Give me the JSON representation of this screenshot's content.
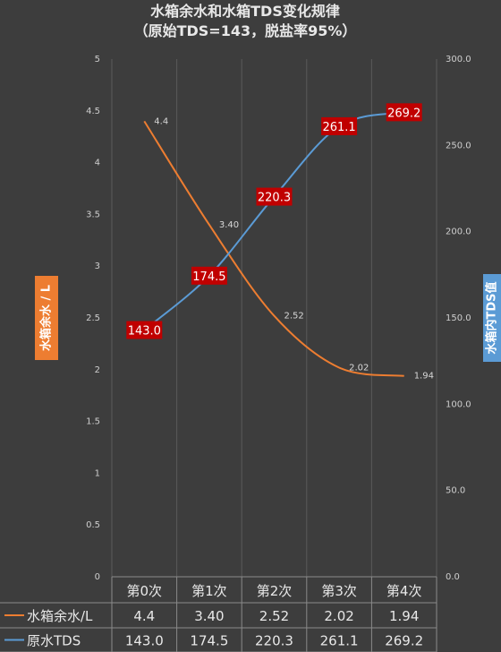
{
  "chart_data": {
    "type": "line",
    "title": "水箱余水和水箱TDS变化规律",
    "subtitle": "（原始TDS=143，脱盐率95%）",
    "categories": [
      "第0次",
      "第1次",
      "第2次",
      "第3次",
      "第4次"
    ],
    "series": [
      {
        "name": "水箱余水/L",
        "axis": "left",
        "color": "#ed7d31",
        "values": [
          4.4,
          3.4,
          2.52,
          2.02,
          1.94
        ],
        "labels": [
          "4.4",
          "3.40",
          "2.52",
          "2.02",
          "1.94"
        ]
      },
      {
        "name": "原水TDS",
        "axis": "right",
        "color": "#5b9bd5",
        "values": [
          143.0,
          174.5,
          220.3,
          261.1,
          269.2
        ],
        "labels": [
          "143.0",
          "174.5",
          "220.3",
          "261.1",
          "269.2"
        ]
      }
    ],
    "y_left": {
      "label": "水箱余水 / L",
      "min": 0,
      "max": 5,
      "ticks": [
        "0",
        "0.5",
        "1",
        "1.5",
        "2",
        "2.5",
        "3",
        "3.5",
        "4",
        "4.5",
        "5"
      ]
    },
    "y_right": {
      "label": "水箱内TDS值",
      "min": 0,
      "max": 300,
      "ticks": [
        "0.0",
        "50.0",
        "100.0",
        "150.0",
        "200.0",
        "250.0",
        "300.0"
      ]
    },
    "grid": true,
    "legend": "data-table",
    "colors": {
      "background": "#3d3d3d",
      "water": "#ed7d31",
      "tds": "#5b9bd5",
      "tds_label_bg": "#c00000"
    }
  }
}
